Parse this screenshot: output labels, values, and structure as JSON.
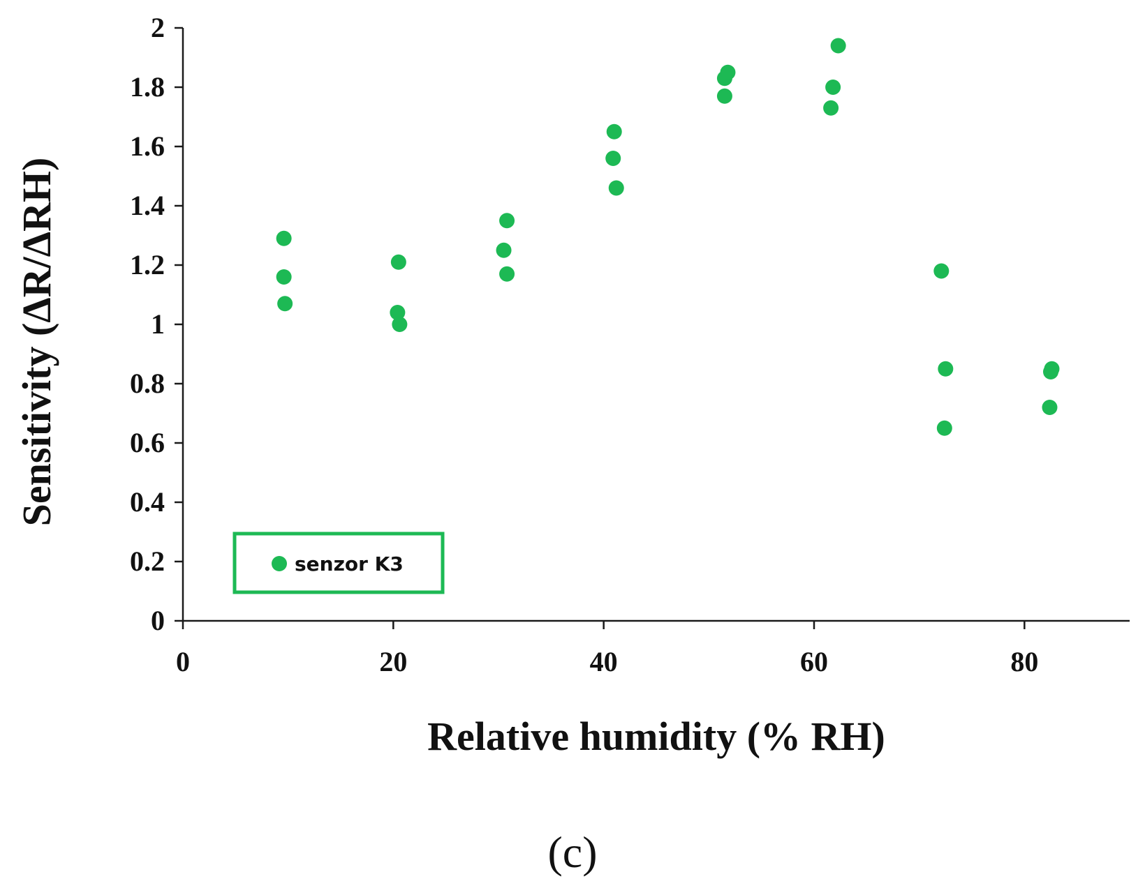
{
  "chart_data": {
    "type": "scatter",
    "xlabel": "Relative humidity (% RH)",
    "ylabel": "Sensitivity (ΔR/ΔRH)",
    "xlim": [
      0,
      90
    ],
    "ylim": [
      0,
      2
    ],
    "xticks": [
      "0",
      "20",
      "40",
      "60",
      "80"
    ],
    "yticks": [
      "0",
      "0.2",
      "0.4",
      "0.6",
      "0.8",
      "1",
      "1.2",
      "1.4",
      "1.6",
      "1.8",
      "2"
    ],
    "grid": false,
    "legend_position": "bottom-left",
    "series": [
      {
        "name": "senzor K3",
        "color": "#1db954",
        "points": [
          [
            9.6,
            1.29
          ],
          [
            9.6,
            1.16
          ],
          [
            9.7,
            1.07
          ],
          [
            20.5,
            1.21
          ],
          [
            20.4,
            1.04
          ],
          [
            20.6,
            1.0
          ],
          [
            30.8,
            1.35
          ],
          [
            30.5,
            1.25
          ],
          [
            30.8,
            1.17
          ],
          [
            41.0,
            1.65
          ],
          [
            40.9,
            1.56
          ],
          [
            41.2,
            1.46
          ],
          [
            51.5,
            1.83
          ],
          [
            51.8,
            1.85
          ],
          [
            51.5,
            1.77
          ],
          [
            62.3,
            1.94
          ],
          [
            61.8,
            1.8
          ],
          [
            61.6,
            1.73
          ],
          [
            72.1,
            1.18
          ],
          [
            72.5,
            0.85
          ],
          [
            72.4,
            0.65
          ],
          [
            82.6,
            0.85
          ],
          [
            82.5,
            0.84
          ],
          [
            82.4,
            0.72
          ]
        ]
      }
    ]
  },
  "panel_label": "(c)"
}
